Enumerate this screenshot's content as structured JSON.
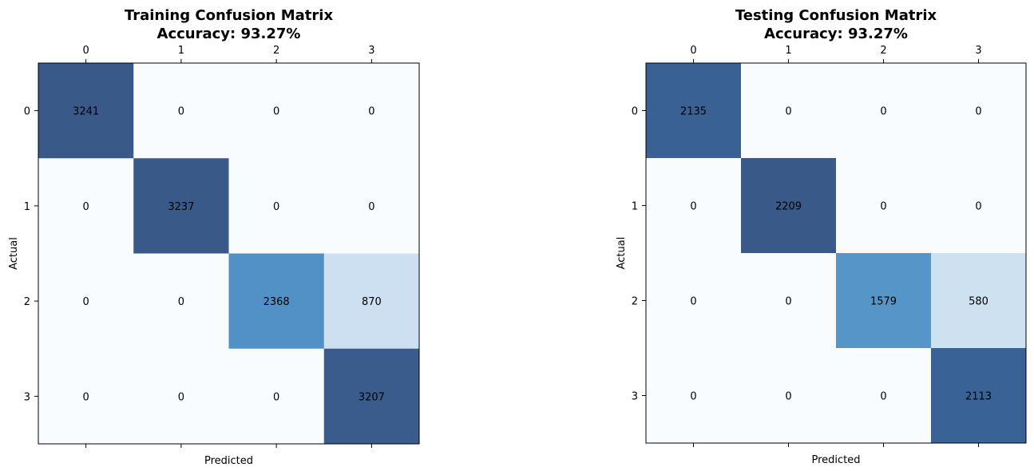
{
  "chart_data": [
    {
      "type": "heatmap",
      "title": "Training Confusion Matrix",
      "subtitle": "Accuracy: 93.27%",
      "xlabel": "Predicted",
      "ylabel": "Actual",
      "x_ticks": [
        "0",
        "1",
        "2",
        "3"
      ],
      "y_ticks": [
        "0",
        "1",
        "2",
        "3"
      ],
      "x_ticks_position": "top",
      "colormap": "Blues",
      "matrix": [
        [
          3241,
          0,
          0,
          0
        ],
        [
          0,
          3237,
          0,
          0
        ],
        [
          0,
          0,
          2368,
          870
        ],
        [
          0,
          0,
          0,
          3207
        ]
      ],
      "grid": false
    },
    {
      "type": "heatmap",
      "title": "Testing Confusion Matrix",
      "subtitle": "Accuracy: 93.27%",
      "xlabel": "Predicted",
      "ylabel": "Actual",
      "x_ticks": [
        "0",
        "1",
        "2",
        "3"
      ],
      "y_ticks": [
        "0",
        "1",
        "2",
        "3"
      ],
      "x_ticks_position": "top",
      "colormap": "Blues",
      "matrix": [
        [
          2135,
          0,
          0,
          0
        ],
        [
          0,
          2209,
          0,
          0
        ],
        [
          0,
          0,
          1579,
          580
        ],
        [
          0,
          0,
          0,
          2113
        ]
      ],
      "grid": false
    }
  ],
  "colors": {
    "blues_low": "#f7fbff",
    "blues_high": "#08306b",
    "axis": "#000000"
  }
}
